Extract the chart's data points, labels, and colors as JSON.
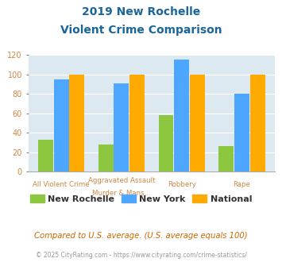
{
  "title_line1": "2019 New Rochelle",
  "title_line2": "Violent Crime Comparison",
  "top_labels": [
    "",
    "Aggravated Assault",
    "",
    ""
  ],
  "bottom_labels": [
    "All Violent Crime",
    "Murder & Mans...",
    "Robbery",
    "Rape"
  ],
  "series": {
    "New Rochelle": [
      33,
      28,
      58,
      26
    ],
    "New York": [
      95,
      91,
      115,
      80
    ],
    "National": [
      100,
      100,
      100,
      100
    ]
  },
  "colors": {
    "New Rochelle": "#8dc63f",
    "New York": "#4da6ff",
    "National": "#ffaa00"
  },
  "ylim": [
    0,
    120
  ],
  "yticks": [
    0,
    20,
    40,
    60,
    80,
    100,
    120
  ],
  "title_color": "#1a6699",
  "plot_bg": "#dce9f0",
  "footer_text": "Compared to U.S. average. (U.S. average equals 100)",
  "copyright_text": "© 2025 CityRating.com - https://www.cityrating.com/crime-statistics/",
  "footer_color": "#cc6600",
  "copyright_color": "#999999",
  "legend_label_color": "#333333",
  "tick_label_color": "#cc8844"
}
